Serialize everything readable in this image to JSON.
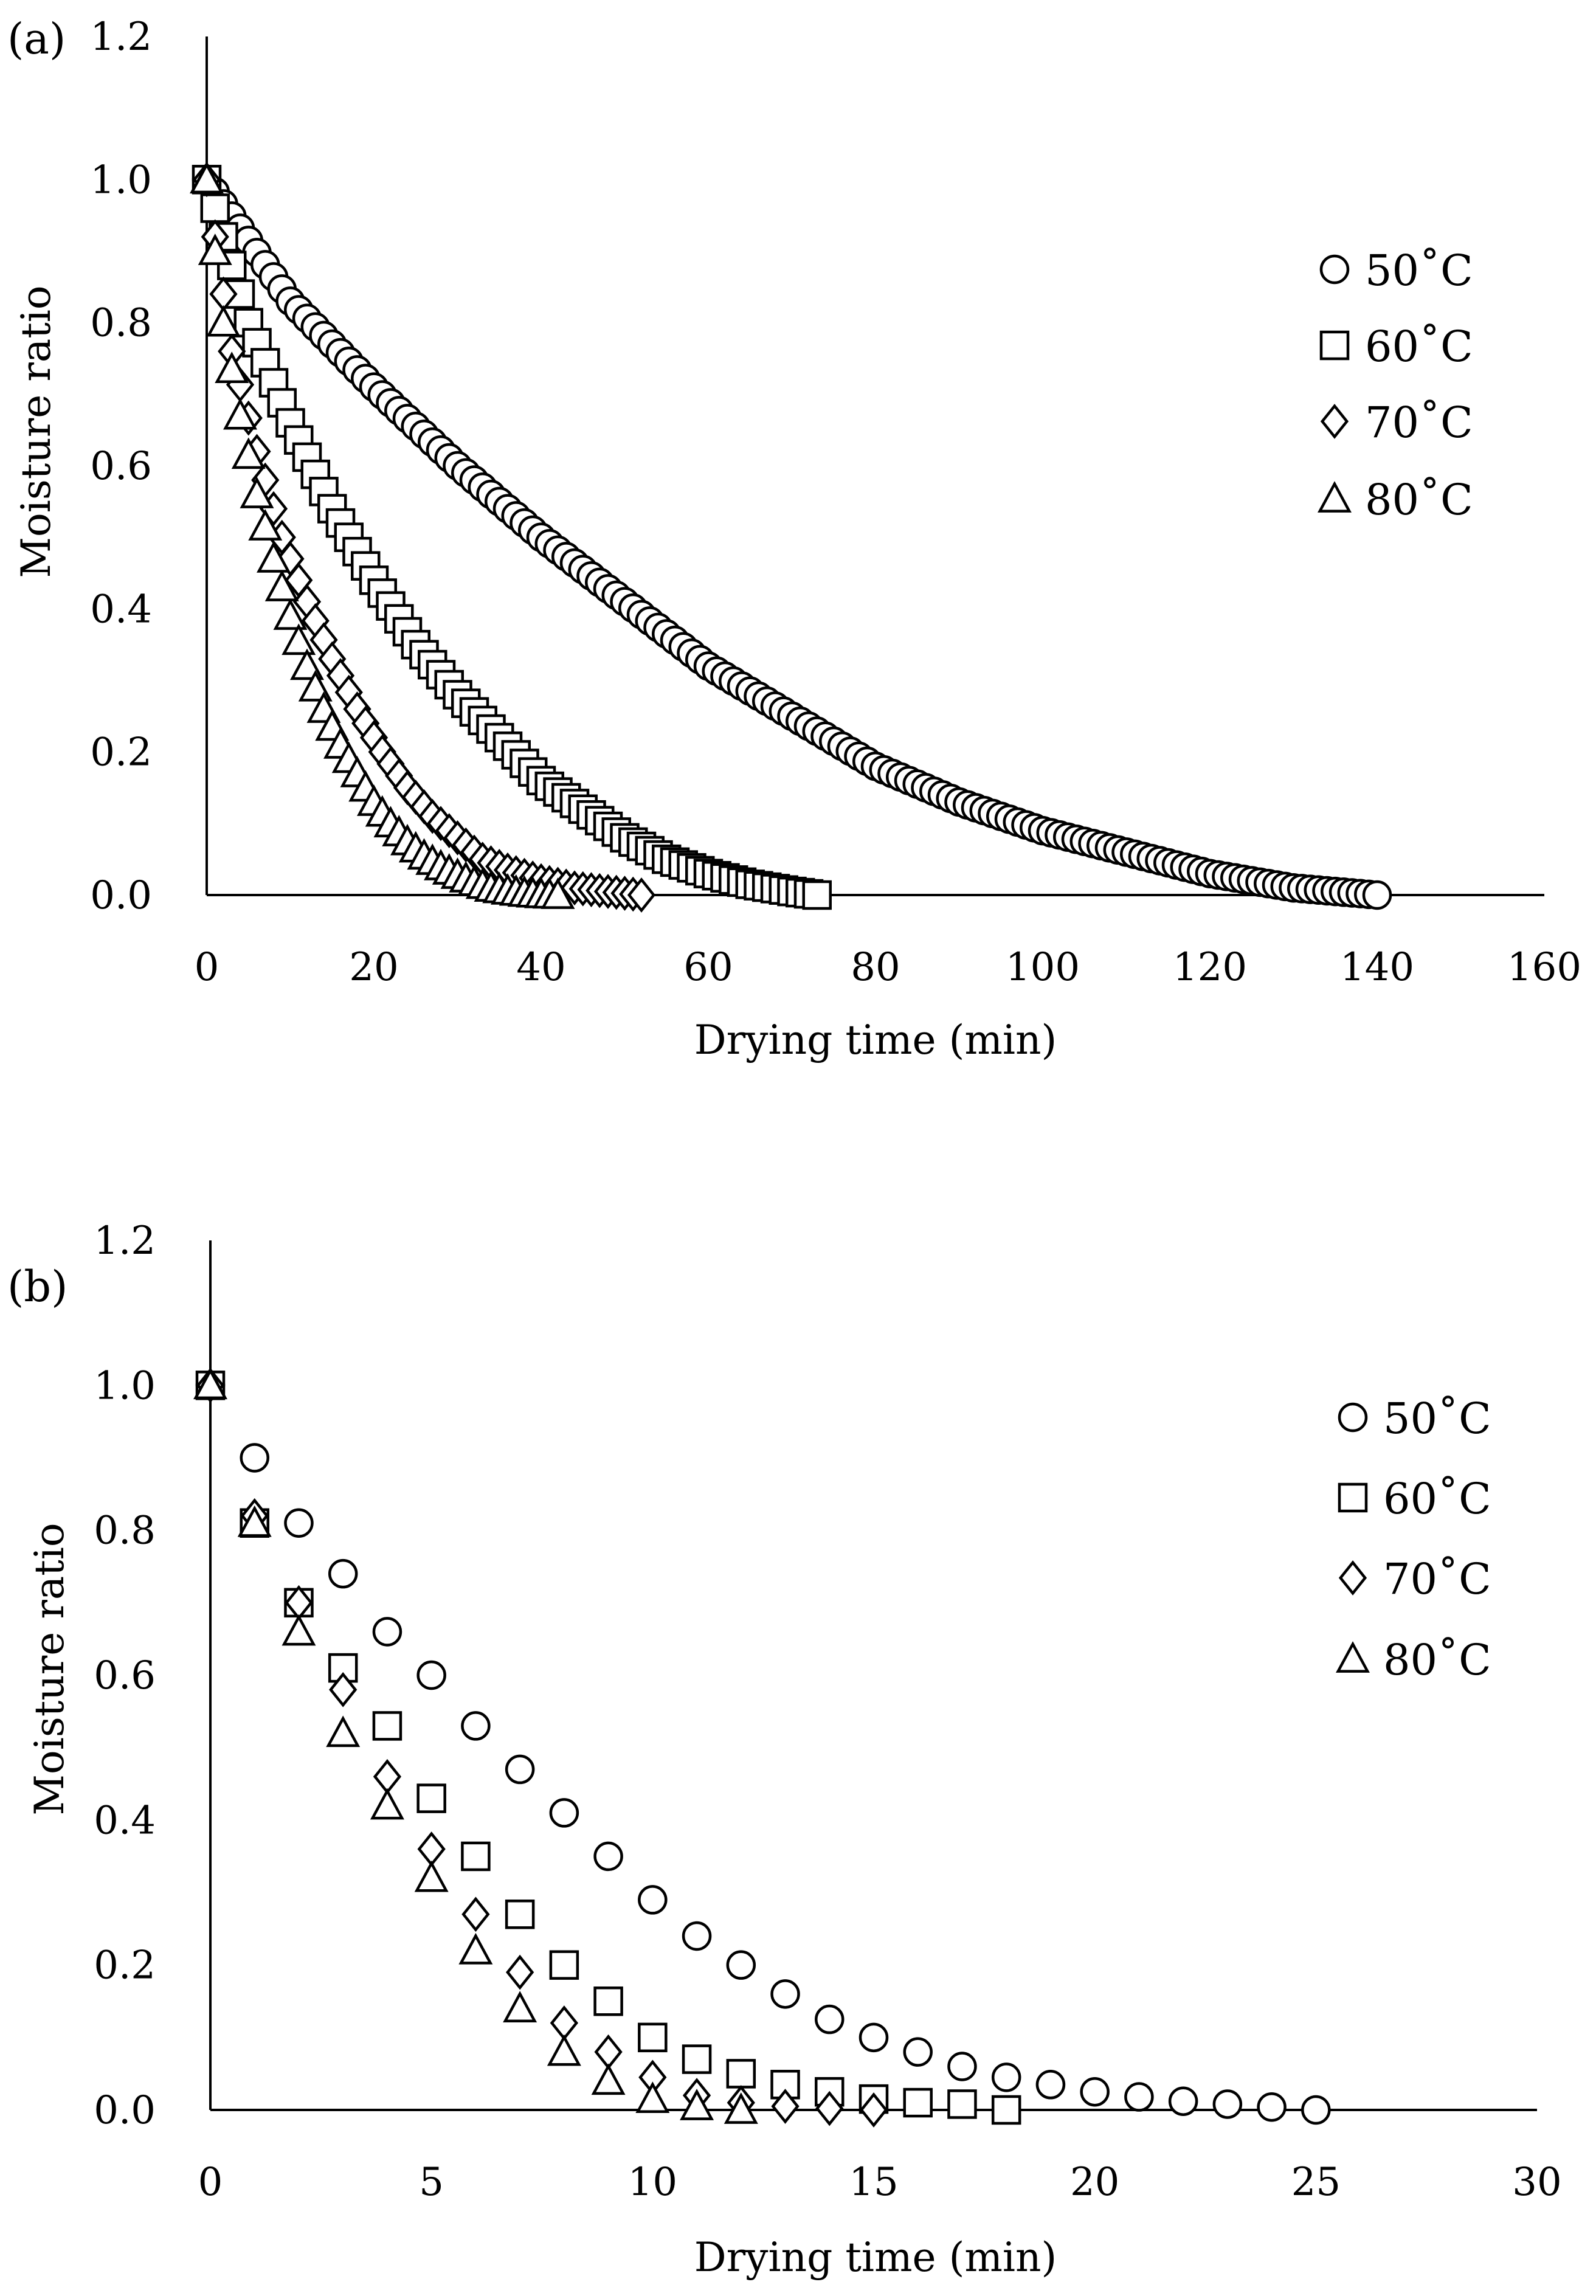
{
  "figure": {
    "panel_labels": [
      "(a)",
      "(b)"
    ]
  },
  "chart_data": [
    {
      "type": "scatter",
      "panel": "(a)",
      "title": "",
      "xlabel": "Drying time (min)",
      "ylabel": "Moisture ratio",
      "xlim": [
        0,
        160
      ],
      "ylim": [
        0,
        1.2
      ],
      "x_ticks": [
        "0",
        "20",
        "40",
        "60",
        "80",
        "100",
        "120",
        "140",
        "160"
      ],
      "y_ticks": [
        "0.0",
        "0.2",
        "0.4",
        "0.6",
        "0.8",
        "1.0",
        "1.2"
      ],
      "legend_position": "right",
      "series": [
        {
          "name": "50˚C",
          "marker": "circle",
          "x": [
            0,
            10,
            20,
            30,
            40,
            50,
            60,
            70,
            80,
            90,
            100,
            110,
            120,
            130,
            140
          ],
          "y": [
            1.0,
            0.83,
            0.71,
            0.6,
            0.5,
            0.41,
            0.32,
            0.25,
            0.18,
            0.13,
            0.09,
            0.06,
            0.03,
            0.01,
            0.0
          ]
        },
        {
          "name": "60˚C",
          "marker": "square",
          "x": [
            0,
            5,
            10,
            15,
            20,
            25,
            30,
            35,
            40,
            45,
            50,
            55,
            60,
            65,
            70,
            73
          ],
          "y": [
            1.0,
            0.8,
            0.66,
            0.54,
            0.44,
            0.35,
            0.28,
            0.22,
            0.16,
            0.12,
            0.08,
            0.05,
            0.03,
            0.015,
            0.005,
            0.0
          ]
        },
        {
          "name": "70˚C",
          "marker": "diamond",
          "x": [
            0,
            3,
            6,
            9,
            12,
            15,
            18,
            21,
            24,
            27,
            30,
            33,
            36,
            40,
            44,
            48,
            52
          ],
          "y": [
            1.0,
            0.76,
            0.62,
            0.5,
            0.41,
            0.33,
            0.26,
            0.2,
            0.15,
            0.11,
            0.08,
            0.05,
            0.035,
            0.02,
            0.01,
            0.005,
            0.0
          ]
        },
        {
          "name": "80˚C",
          "marker": "triangle",
          "x": [
            0,
            2,
            4,
            6,
            8,
            10,
            12,
            14,
            16,
            18,
            20,
            22,
            24,
            26,
            28,
            30,
            32,
            34,
            36,
            38,
            40,
            42
          ],
          "y": [
            1.0,
            0.8,
            0.67,
            0.56,
            0.47,
            0.39,
            0.32,
            0.26,
            0.21,
            0.17,
            0.13,
            0.1,
            0.075,
            0.055,
            0.04,
            0.028,
            0.018,
            0.01,
            0.006,
            0.003,
            0.001,
            0.0
          ]
        }
      ]
    },
    {
      "type": "scatter",
      "panel": "(b)",
      "title": "",
      "xlabel": "Drying time (min)",
      "ylabel": "Moisture ratio",
      "xlim": [
        0,
        30
      ],
      "ylim": [
        0,
        1.2
      ],
      "x_ticks": [
        "0",
        "5",
        "10",
        "15",
        "20",
        "25",
        "30"
      ],
      "y_ticks": [
        "0.0",
        "0.2",
        "0.4",
        "0.6",
        "0.8",
        "1.0",
        "1.2"
      ],
      "legend_position": "right",
      "series": [
        {
          "name": "50˚C",
          "marker": "circle",
          "x": [
            0,
            1,
            2,
            3,
            4,
            5,
            6,
            7,
            8,
            9,
            10,
            11,
            12,
            13,
            14,
            15,
            16,
            17,
            18,
            19,
            20,
            21,
            22,
            23,
            24,
            25
          ],
          "y": [
            1.0,
            0.9,
            0.81,
            0.74,
            0.66,
            0.6,
            0.53,
            0.47,
            0.41,
            0.35,
            0.29,
            0.24,
            0.2,
            0.16,
            0.125,
            0.1,
            0.08,
            0.06,
            0.045,
            0.035,
            0.025,
            0.018,
            0.012,
            0.008,
            0.004,
            0.0
          ]
        },
        {
          "name": "60˚C",
          "marker": "square",
          "x": [
            0,
            1,
            2,
            3,
            4,
            5,
            6,
            7,
            8,
            9,
            10,
            11,
            12,
            13,
            14,
            15,
            16,
            17,
            18
          ],
          "y": [
            1.0,
            0.81,
            0.7,
            0.61,
            0.53,
            0.43,
            0.35,
            0.27,
            0.2,
            0.15,
            0.1,
            0.07,
            0.05,
            0.035,
            0.025,
            0.015,
            0.01,
            0.008,
            0.0
          ]
        },
        {
          "name": "70˚C",
          "marker": "diamond",
          "x": [
            0,
            1,
            2,
            3,
            4,
            5,
            6,
            7,
            8,
            9,
            10,
            11,
            12,
            13,
            14,
            15
          ],
          "y": [
            1.0,
            0.82,
            0.7,
            0.58,
            0.46,
            0.36,
            0.27,
            0.19,
            0.12,
            0.08,
            0.045,
            0.02,
            0.01,
            0.005,
            0.002,
            0.0
          ]
        },
        {
          "name": "80˚C",
          "marker": "triangle",
          "x": [
            0,
            1,
            2,
            3,
            4,
            5,
            6,
            7,
            8,
            9,
            10,
            11,
            12
          ],
          "y": [
            1.0,
            0.81,
            0.66,
            0.52,
            0.42,
            0.32,
            0.22,
            0.14,
            0.08,
            0.04,
            0.015,
            0.005,
            0.0
          ]
        }
      ]
    }
  ]
}
